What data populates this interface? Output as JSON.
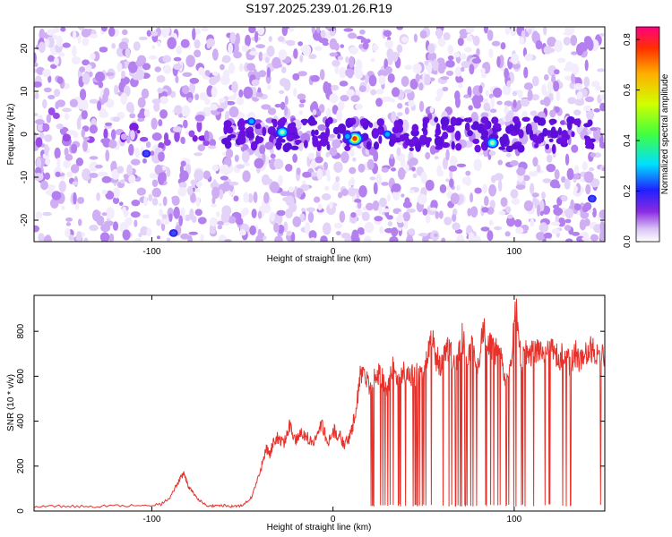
{
  "title": "S197.2025.239.01.26.R19",
  "chart_data": [
    {
      "type": "heatmap",
      "xlabel": "Height of straight line (km)",
      "ylabel": "Frequency (Hz)",
      "xlim": [
        -165,
        150
      ],
      "ylim": [
        -25,
        25
      ],
      "xticks": [
        -100,
        0,
        100
      ],
      "yticks": [
        -20,
        -10,
        0,
        10,
        20
      ],
      "colorbar": {
        "label": "Normalized spectral amplitude",
        "range": [
          0,
          0.85
        ],
        "ticks": [
          0.0,
          0.2,
          0.4,
          0.6,
          0.8
        ]
      },
      "peaks": [
        {
          "x": 12,
          "y": -1,
          "amplitude": 0.8
        },
        {
          "x": 8,
          "y": -0.5,
          "amplitude": 0.25
        },
        {
          "x": -28,
          "y": 0.5,
          "amplitude": 0.3
        },
        {
          "x": -45,
          "y": 3,
          "amplitude": 0.22
        },
        {
          "x": 30,
          "y": 0,
          "amplitude": 0.2
        },
        {
          "x": 88,
          "y": -2,
          "amplitude": 0.3
        },
        {
          "x": -103,
          "y": -4.5,
          "amplitude": 0.12
        },
        {
          "x": -88,
          "y": -23,
          "amplitude": 0.12
        },
        {
          "x": 143,
          "y": -15,
          "amplitude": 0.15
        }
      ]
    },
    {
      "type": "line",
      "xlabel": "Height of straight line (km)",
      "ylabel": "SNR (10 * v/v)",
      "xlim": [
        -165,
        150
      ],
      "ylim": [
        0,
        960
      ],
      "xticks": [
        -100,
        0,
        100
      ],
      "yticks": [
        0,
        200,
        400,
        600,
        800
      ],
      "series": [
        {
          "name": "SNR",
          "color": "#e8312a",
          "x": [
            -165,
            -150,
            -135,
            -120,
            -105,
            -95,
            -90,
            -86,
            -84,
            -82,
            -80,
            -77,
            -74,
            -70,
            -65,
            -60,
            -55,
            -50,
            -45,
            -40,
            -37,
            -35,
            -33,
            -30,
            -27,
            -24,
            -21,
            -18,
            -15,
            -12,
            -9,
            -6,
            -3,
            0,
            3,
            6,
            9,
            12,
            15,
            18,
            21,
            24,
            27,
            30,
            33,
            36,
            39,
            42,
            45,
            48,
            51,
            54,
            57,
            60,
            63,
            65,
            68,
            71,
            74,
            77,
            80,
            83,
            86,
            89,
            92,
            95,
            98,
            101,
            104,
            107,
            110,
            113,
            116,
            119,
            122,
            125,
            128,
            131,
            134,
            137,
            140,
            143,
            146,
            150
          ],
          "y": [
            20,
            22,
            20,
            24,
            25,
            30,
            60,
            120,
            150,
            170,
            110,
            80,
            50,
            25,
            22,
            25,
            20,
            25,
            60,
            180,
            280,
            250,
            300,
            330,
            300,
            380,
            320,
            350,
            340,
            300,
            330,
            390,
            300,
            360,
            340,
            300,
            320,
            420,
            600,
            580,
            540,
            620,
            600,
            540,
            650,
            560,
            630,
            600,
            600,
            620,
            650,
            800,
            680,
            640,
            720,
            700,
            650,
            780,
            700,
            720,
            650,
            800,
            760,
            700,
            720,
            600,
            640,
            900,
            660,
            720,
            700,
            720,
            700,
            700,
            720,
            680,
            700,
            640,
            700,
            660,
            700,
            720,
            710,
            700
          ]
        }
      ]
    }
  ]
}
